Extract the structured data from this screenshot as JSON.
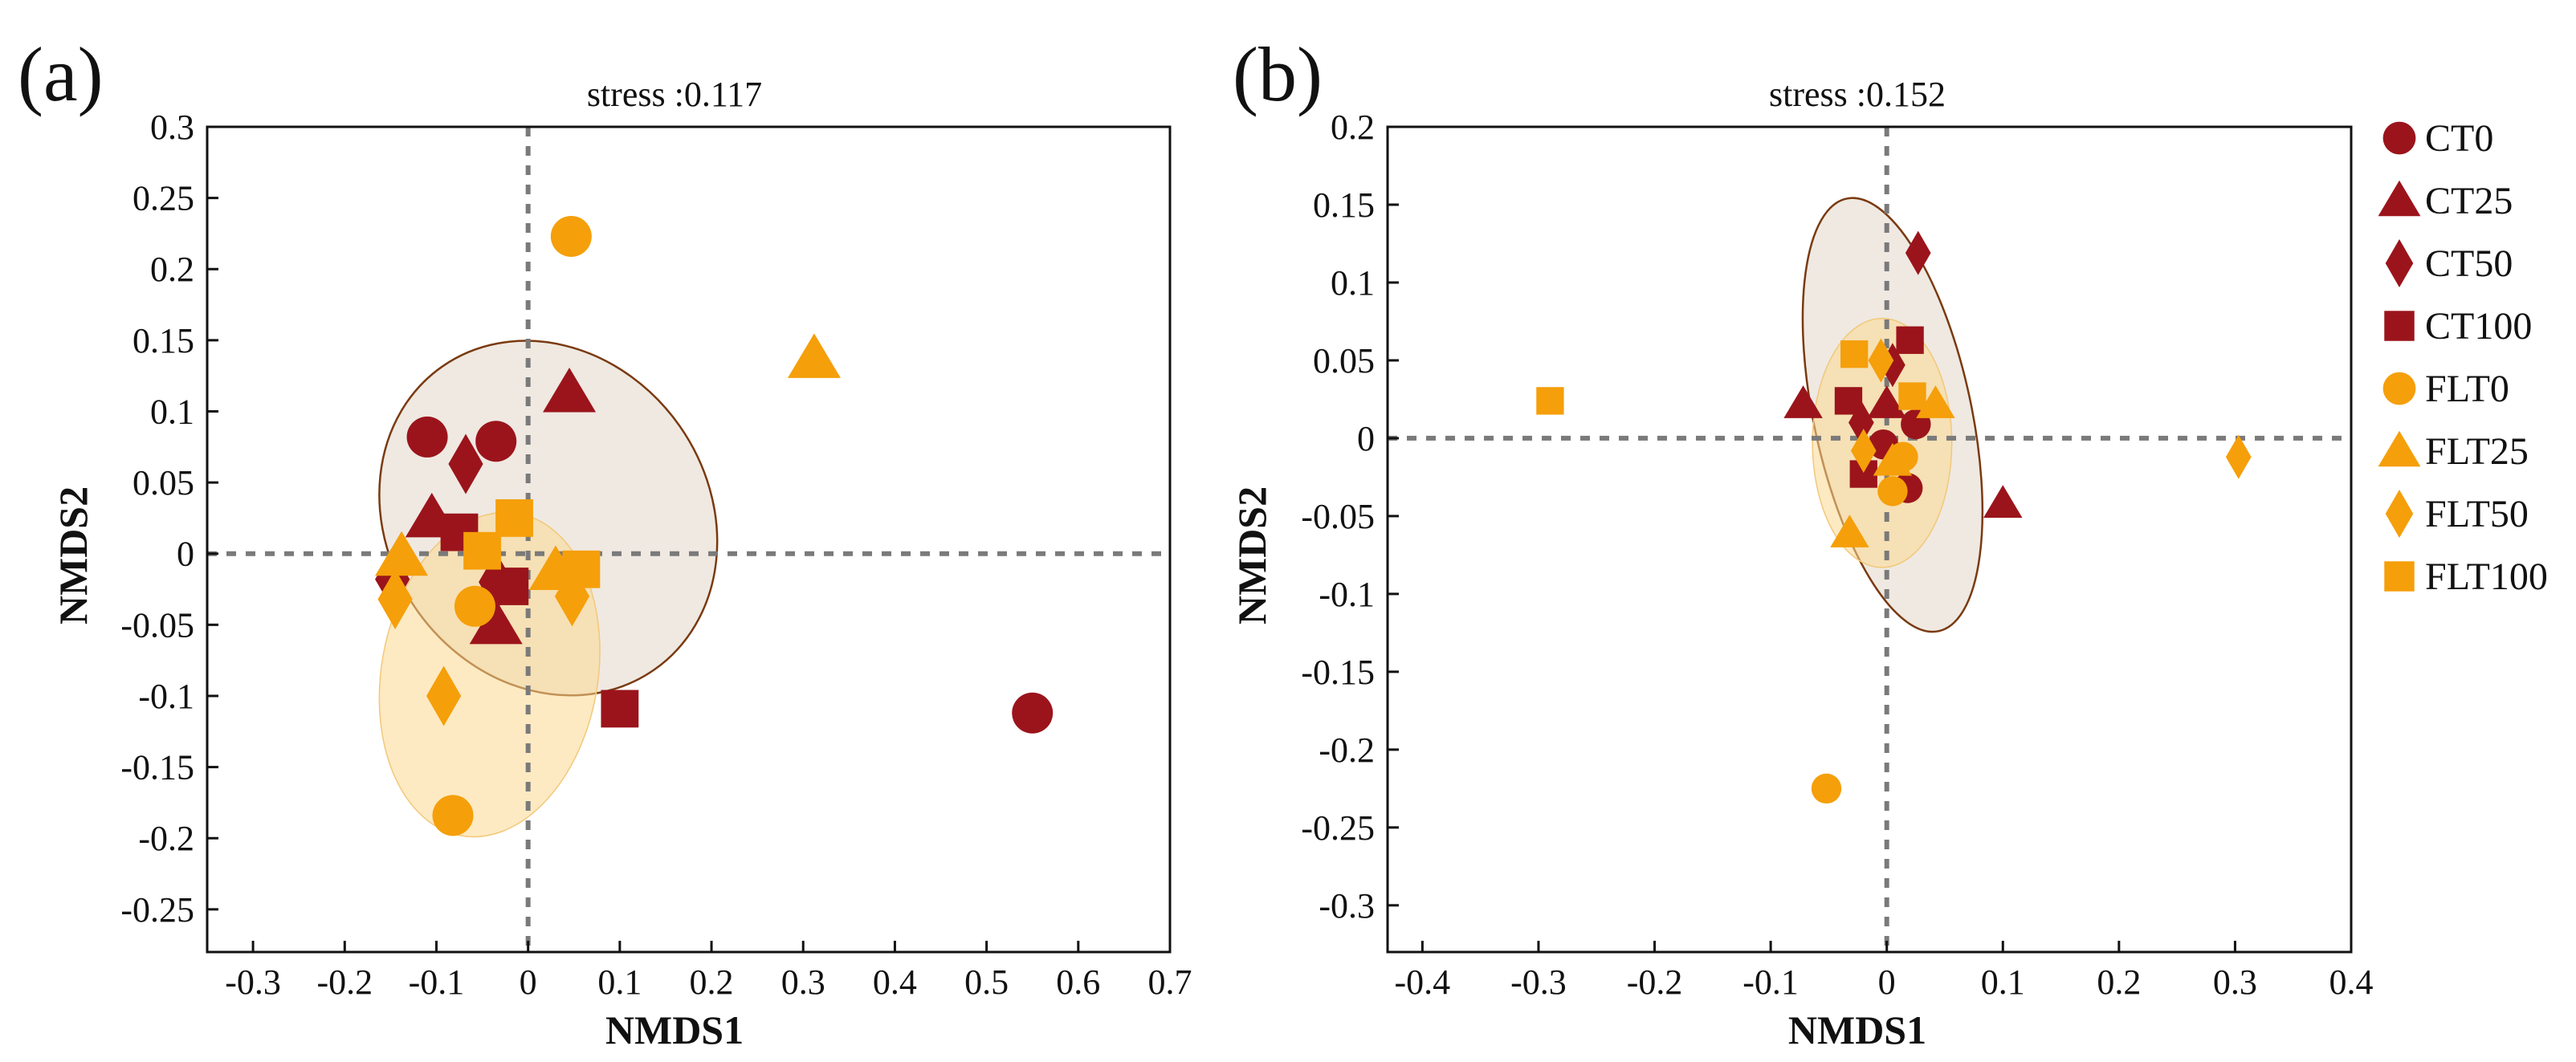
{
  "colors": {
    "CT": "#9b141b",
    "FLT": "#f59f0a",
    "ellipse_CT_fill": "#e9e1d8",
    "ellipse_FLT_fill": "#fbd98f",
    "ellipse_CT_stroke": "#7a3a10",
    "ellipse_FLT_stroke": "#f2c87a"
  },
  "legend": {
    "placement": "right",
    "items": [
      {
        "label": "CT0",
        "group": "CT",
        "shape": "circle"
      },
      {
        "label": "CT25",
        "group": "CT",
        "shape": "triangle"
      },
      {
        "label": "CT50",
        "group": "CT",
        "shape": "diamond"
      },
      {
        "label": "CT100",
        "group": "CT",
        "shape": "square"
      },
      {
        "label": "FLT0",
        "group": "FLT",
        "shape": "circle"
      },
      {
        "label": "FLT25",
        "group": "FLT",
        "shape": "triangle"
      },
      {
        "label": "FLT50",
        "group": "FLT",
        "shape": "diamond"
      },
      {
        "label": "FLT100",
        "group": "FLT",
        "shape": "square"
      }
    ]
  },
  "chart_data": [
    {
      "type": "scatter",
      "panel_label": "(a)",
      "title": "stress :0.117",
      "xlabel": "NMDS1",
      "ylabel": "NMDS2",
      "xlim": [
        -0.35,
        0.7
      ],
      "ylim": [
        -0.28,
        0.3
      ],
      "xticks": [
        -0.3,
        -0.2,
        -0.1,
        0,
        0.1,
        0.2,
        0.3,
        0.4,
        0.5,
        0.6,
        0.7
      ],
      "xtick_labels": [
        "-0.3",
        "-0.2",
        "-0.1",
        "0",
        "0.1",
        "0.2",
        "0.3",
        "0.4",
        "0.5",
        "0.6",
        "0.7"
      ],
      "yticks": [
        0.3,
        0.25,
        0.2,
        0.15,
        0.1,
        0.05,
        0,
        -0.05,
        -0.1,
        -0.15,
        -0.2,
        -0.25
      ],
      "ytick_labels": [
        "0.3",
        "0.25",
        "0.2",
        "0.15",
        "0.1",
        "0.05",
        "0",
        "-0.05",
        "-0.1",
        "-0.15",
        "-0.2",
        "-0.25"
      ],
      "zero_lines": true,
      "ellipses": [
        {
          "group": "CT",
          "cx": 0.022,
          "cy": 0.025,
          "rx": 0.175,
          "ry": 0.13,
          "angle": -35
        },
        {
          "group": "FLT",
          "cx": -0.042,
          "cy": -0.085,
          "rx": 0.118,
          "ry": 0.115,
          "angle": 10
        }
      ],
      "points": [
        {
          "series": "CT0",
          "x": -0.11,
          "y": 0.082
        },
        {
          "series": "CT0",
          "x": -0.035,
          "y": 0.079
        },
        {
          "series": "CT0",
          "x": 0.55,
          "y": -0.112
        },
        {
          "series": "CT25",
          "x": 0.045,
          "y": 0.113
        },
        {
          "series": "CT25",
          "x": -0.105,
          "y": 0.025
        },
        {
          "series": "CT25",
          "x": -0.035,
          "y": -0.05
        },
        {
          "series": "CT50",
          "x": -0.068,
          "y": 0.063
        },
        {
          "series": "CT50",
          "x": -0.148,
          "y": -0.018
        },
        {
          "series": "CT50",
          "x": -0.035,
          "y": -0.02
        },
        {
          "series": "CT100",
          "x": -0.075,
          "y": 0.015
        },
        {
          "series": "CT100",
          "x": -0.02,
          "y": -0.023
        },
        {
          "series": "CT100",
          "x": 0.1,
          "y": -0.109
        },
        {
          "series": "FLT0",
          "x": 0.047,
          "y": 0.223
        },
        {
          "series": "FLT0",
          "x": -0.058,
          "y": -0.037
        },
        {
          "series": "FLT0",
          "x": -0.082,
          "y": -0.184
        },
        {
          "series": "FLT25",
          "x": 0.312,
          "y": 0.137
        },
        {
          "series": "FLT25",
          "x": -0.138,
          "y": -0.002
        },
        {
          "series": "FLT25",
          "x": 0.03,
          "y": -0.012
        },
        {
          "series": "FLT50",
          "x": -0.145,
          "y": -0.032
        },
        {
          "series": "FLT50",
          "x": 0.048,
          "y": -0.03
        },
        {
          "series": "FLT50",
          "x": -0.092,
          "y": -0.1
        },
        {
          "series": "FLT100",
          "x": -0.015,
          "y": 0.025
        },
        {
          "series": "FLT100",
          "x": -0.05,
          "y": 0.002
        },
        {
          "series": "FLT100",
          "x": 0.058,
          "y": -0.011
        }
      ]
    },
    {
      "type": "scatter",
      "panel_label": "(b)",
      "title": "stress :0.152",
      "xlabel": "NMDS1",
      "ylabel": "NMDS2",
      "xlim": [
        -0.43,
        0.4
      ],
      "ylim": [
        -0.33,
        0.2
      ],
      "xticks": [
        -0.4,
        -0.3,
        -0.2,
        -0.1,
        0,
        0.1,
        0.2,
        0.3,
        0.4
      ],
      "xtick_labels": [
        "-0.4",
        "-0.3",
        "-0.2",
        "-0.1",
        "0",
        "0.1",
        "0.2",
        "0.3",
        "0.4"
      ],
      "yticks": [
        0.2,
        0.15,
        0.1,
        0.05,
        0,
        -0.05,
        -0.1,
        -0.15,
        -0.2,
        -0.25,
        -0.3
      ],
      "ytick_labels": [
        "0.2",
        "0.15",
        "0.1",
        "0.05",
        "0",
        "-0.05",
        "-0.1",
        "-0.15",
        "-0.2",
        "-0.25",
        "-0.3"
      ],
      "zero_lines": true,
      "ellipses": [
        {
          "group": "CT",
          "cx": 0.005,
          "cy": 0.015,
          "rx": 0.068,
          "ry": 0.142,
          "angle": -12
        },
        {
          "group": "FLT",
          "cx": -0.004,
          "cy": -0.003,
          "rx": 0.06,
          "ry": 0.08,
          "angle": 0
        }
      ],
      "points": [
        {
          "series": "CT0",
          "x": -0.003,
          "y": -0.004
        },
        {
          "series": "CT0",
          "x": 0.025,
          "y": 0.009
        },
        {
          "series": "CT0",
          "x": 0.018,
          "y": -0.032
        },
        {
          "series": "CT25",
          "x": -0.072,
          "y": 0.022
        },
        {
          "series": "CT25",
          "x": 0.0,
          "y": 0.022
        },
        {
          "series": "CT25",
          "x": 0.1,
          "y": -0.042
        },
        {
          "series": "CT50",
          "x": 0.027,
          "y": 0.119
        },
        {
          "series": "CT50",
          "x": 0.005,
          "y": 0.047
        },
        {
          "series": "CT50",
          "x": -0.022,
          "y": 0.01
        },
        {
          "series": "CT100",
          "x": -0.033,
          "y": 0.024
        },
        {
          "series": "CT100",
          "x": 0.02,
          "y": 0.063
        },
        {
          "series": "CT100",
          "x": -0.02,
          "y": -0.023
        },
        {
          "series": "FLT0",
          "x": -0.052,
          "y": -0.225
        },
        {
          "series": "FLT0",
          "x": 0.014,
          "y": -0.012
        },
        {
          "series": "FLT0",
          "x": 0.005,
          "y": -0.034
        },
        {
          "series": "FLT25",
          "x": 0.042,
          "y": 0.022
        },
        {
          "series": "FLT25",
          "x": -0.032,
          "y": -0.061
        },
        {
          "series": "FLT25",
          "x": 0.005,
          "y": -0.015
        },
        {
          "series": "FLT50",
          "x": 0.303,
          "y": -0.012
        },
        {
          "series": "FLT50",
          "x": -0.005,
          "y": 0.05
        },
        {
          "series": "FLT50",
          "x": -0.02,
          "y": -0.008
        },
        {
          "series": "FLT100",
          "x": -0.29,
          "y": 0.024
        },
        {
          "series": "FLT100",
          "x": -0.028,
          "y": 0.054
        },
        {
          "series": "FLT100",
          "x": 0.022,
          "y": 0.027
        }
      ]
    }
  ]
}
